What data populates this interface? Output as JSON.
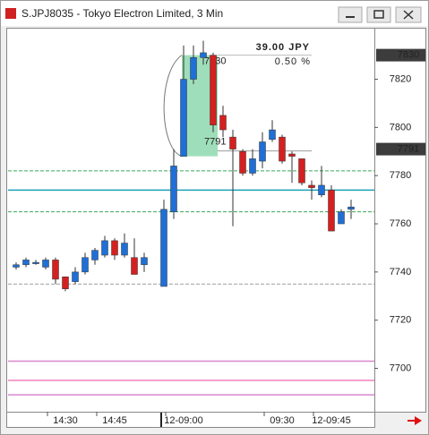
{
  "chart_data": {
    "type": "candlestick",
    "title": "S.JPJ8035 - Tokyo Electron Limited, 3 Min",
    "categories": [
      null,
      null,
      null,
      null,
      null,
      "14:30",
      null,
      null,
      null,
      null,
      "14:45",
      null,
      null,
      null,
      null,
      null,
      null,
      "12-09:00",
      null,
      null,
      null,
      null,
      null,
      null,
      null,
      null,
      null,
      "09:30",
      null,
      null,
      null,
      null,
      "12-09:45",
      null,
      null
    ],
    "open": [
      7742,
      7743,
      7744,
      7742,
      7745,
      7738,
      7736,
      7740,
      7745,
      7747,
      7753,
      7747,
      7746,
      7743,
      null,
      7734,
      7765,
      7788,
      7820,
      7829,
      7830,
      7805,
      7796,
      7790,
      7781,
      7786,
      7795,
      7796,
      7789,
      7787,
      7776,
      7772,
      7774,
      7760,
      7766
    ],
    "high": [
      7744,
      7746,
      7745,
      7746,
      7746,
      7738,
      7742,
      7748,
      7750,
      7755,
      7754,
      7756,
      7754,
      7748,
      null,
      7770,
      7791,
      7834,
      7834,
      7836,
      7831,
      7809,
      7799,
      7791,
      7791,
      7798,
      7803,
      7797,
      7790,
      7787,
      7778,
      7784,
      7776,
      7766,
      7770
    ],
    "low": [
      7741,
      7742,
      7743,
      7741,
      7735,
      7732,
      7735,
      7739,
      7743,
      7746,
      7745,
      7746,
      7739,
      7740,
      null,
      7734,
      7762,
      7788,
      7818,
      7826,
      7798,
      7796,
      7759,
      7780,
      7780,
      7783,
      7794,
      7785,
      7777,
      7776,
      7770,
      7771,
      7757,
      7760,
      7762
    ],
    "close": [
      7743,
      7745,
      7744,
      7745,
      7737,
      7733,
      7740,
      7746,
      7749,
      7753,
      7747,
      7752,
      7739,
      7746,
      null,
      7766,
      7784,
      7820,
      7829,
      7831,
      7801,
      7799,
      7791,
      7781,
      7787,
      7794,
      7799,
      7786,
      7788,
      7777,
      7775,
      7776,
      7757,
      7765,
      7767
    ],
    "up_color": "#1f6fd6",
    "down_color": "#d42020",
    "ylim": [
      7682,
      7841
    ],
    "yticks": [
      7700,
      7720,
      7740,
      7760,
      7780,
      7800,
      7820
    ],
    "price_labels": [
      7830,
      7791
    ],
    "levels": [
      {
        "value": 7782,
        "color": "#3aa85a",
        "dash": true
      },
      {
        "value": 7765,
        "color": "#3aa85a",
        "dash": true
      },
      {
        "value": 7774,
        "color": "#1aa0b4",
        "dash": false
      },
      {
        "value": 7735,
        "color": "#a0a0a0",
        "dash": true
      },
      {
        "value": 7703,
        "color": "#d888d0",
        "dash": false
      },
      {
        "value": 7695,
        "color": "#f080c0",
        "dash": false
      },
      {
        "value": 7689,
        "color": "#d888d0",
        "dash": false
      }
    ],
    "measure": {
      "high": 7830,
      "low": 7791,
      "change": "39.00 JPY",
      "percent": "0.50 %"
    }
  }
}
